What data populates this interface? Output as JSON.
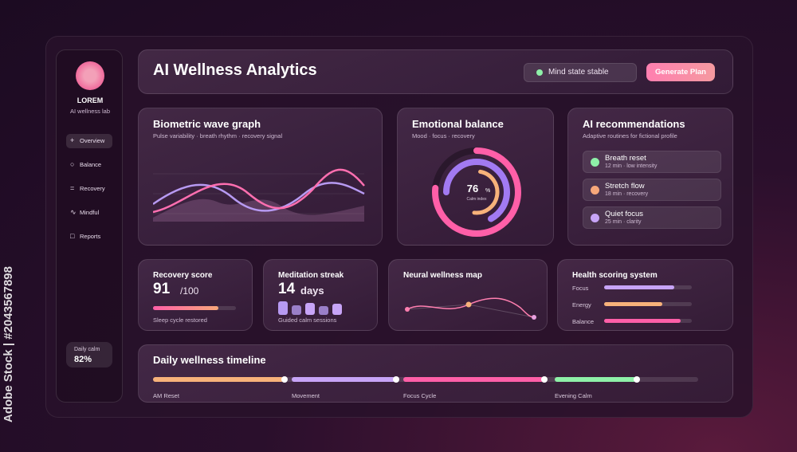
{
  "watermark": "Adobe Stock | #2043567898",
  "sidebar": {
    "brand": "LOREM",
    "subtitle": "AI wellness lab",
    "nav": [
      "Overview",
      "Balance",
      "Recovery",
      "Mindful",
      "Reports"
    ],
    "daily_calm": {
      "label": "Daily calm",
      "value": "82%"
    }
  },
  "header": {
    "title": "AI Wellness Analytics",
    "status": "Mind state stable",
    "button": "Generate Plan"
  },
  "biometric": {
    "title": "Biometric wave graph",
    "subtitle": "Pulse variability · breath rhythm · recovery signal"
  },
  "emotional": {
    "title": "Emotional balance",
    "subtitle": "Mood · focus · recovery",
    "value": "76",
    "unit": "%",
    "caption": "Calm index"
  },
  "recommendations": {
    "title": "AI recommendations",
    "subtitle": "Adaptive routines for fictional profile",
    "items": [
      {
        "name": "Breath reset",
        "detail": "12 min · low intensity",
        "color": "#8ef0a8"
      },
      {
        "name": "Stretch flow",
        "detail": "18 min · recovery",
        "color": "#f7a77a"
      },
      {
        "name": "Quiet focus",
        "detail": "25 min · clarity",
        "color": "#c7a4f7"
      }
    ]
  },
  "recovery": {
    "title": "Recovery score",
    "score": "91",
    "max": "/100",
    "caption": "Sleep cycle restored"
  },
  "meditation": {
    "title": "Meditation streak",
    "value": "14",
    "unit": "days",
    "caption": "Guided calm sessions"
  },
  "neural": {
    "title": "Neural wellness map"
  },
  "health": {
    "title": "Health scoring system",
    "metrics": [
      {
        "label": "Focus",
        "value": 80,
        "color": "#c7a4f7"
      },
      {
        "label": "Energy",
        "value": 66,
        "color": "#f7b27a"
      },
      {
        "label": "Balance",
        "value": 87,
        "color": "#ff5fa8"
      }
    ]
  },
  "timeline": {
    "title": "Daily wellness timeline",
    "phases": [
      {
        "label": "AM Reset",
        "color": "#f7b27a"
      },
      {
        "label": "Movement",
        "color": "#c7a4f7"
      },
      {
        "label": "Focus Cycle",
        "color": "#ff5fa8"
      },
      {
        "label": "Evening Calm",
        "color": "#8ef0a8"
      }
    ]
  }
}
